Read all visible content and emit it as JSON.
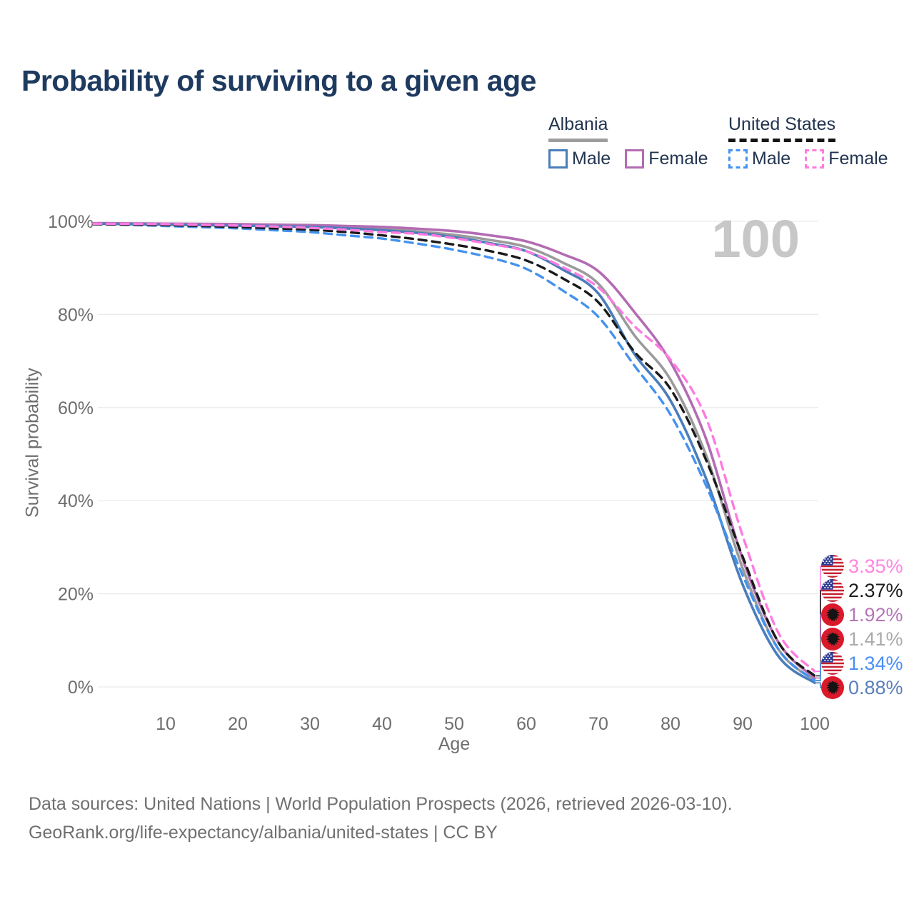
{
  "page": {
    "title": "Probability of surviving to a given age"
  },
  "age_counter": "100",
  "legend": {
    "groups": [
      {
        "country": "Albania",
        "line_style": "solid",
        "underline_color": "#9e9e9e",
        "items": [
          {
            "label": "Male",
            "color": "#4a7dba"
          },
          {
            "label": "Female",
            "color": "#b36cb3"
          }
        ]
      },
      {
        "country": "United States",
        "line_style": "dashed",
        "underline_color": "#141414",
        "items": [
          {
            "label": "Male",
            "color": "#4492ee"
          },
          {
            "label": "Female",
            "color": "#ff7be0"
          }
        ]
      }
    ]
  },
  "chart_data": {
    "type": "line",
    "title": "Probability of surviving to a given age",
    "xlabel": "Age",
    "ylabel": "Survival probability",
    "xlim": [
      0,
      100
    ],
    "ylim": [
      0,
      100
    ],
    "grid": "horizontal",
    "x_ticks": [
      10,
      20,
      30,
      40,
      50,
      60,
      70,
      80,
      90,
      100
    ],
    "y_ticks": [
      0,
      20,
      40,
      60,
      80,
      100
    ],
    "y_tick_suffix": "%",
    "x": [
      0,
      5,
      10,
      15,
      20,
      25,
      30,
      35,
      40,
      45,
      50,
      55,
      60,
      65,
      70,
      75,
      80,
      85,
      90,
      95,
      100
    ],
    "series": [
      {
        "name": "Albania Total",
        "country": "al",
        "color": "#9b9b9b",
        "dash": false,
        "values": [
          99.55,
          99.5,
          99.45,
          99.4,
          99.3,
          99.2,
          99.05,
          98.8,
          98.45,
          97.8,
          97.1,
          96.0,
          94.5,
          91.2,
          86.6,
          75.5,
          66.0,
          49.5,
          25.5,
          8.0,
          1.41
        ]
      },
      {
        "name": "Albania Female",
        "country": "al",
        "color": "#b36cb3",
        "dash": false,
        "values": [
          99.6,
          99.55,
          99.5,
          99.45,
          99.4,
          99.3,
          99.2,
          99.0,
          98.8,
          98.4,
          97.9,
          97.0,
          95.7,
          93.0,
          89.3,
          80.5,
          69.8,
          53.0,
          27.5,
          9.5,
          1.92
        ]
      },
      {
        "name": "Albania Male",
        "country": "al",
        "color": "#4a7dba",
        "dash": false,
        "values": [
          99.5,
          99.4,
          99.3,
          99.2,
          99.1,
          98.95,
          98.8,
          98.5,
          98.1,
          97.5,
          96.6,
          95.3,
          93.6,
          89.7,
          84.5,
          71.5,
          61.5,
          44.5,
          22.0,
          6.5,
          0.88
        ]
      },
      {
        "name": "United States Male",
        "country": "us",
        "color": "#4492ee",
        "dash": true,
        "values": [
          99.4,
          99.25,
          99.0,
          98.75,
          98.5,
          98.1,
          97.7,
          97.0,
          96.3,
          95.2,
          93.9,
          92.2,
          89.8,
          85.2,
          79.5,
          69.0,
          58.5,
          43.0,
          24.0,
          8.0,
          1.34
        ]
      },
      {
        "name": "United States Total",
        "country": "us",
        "color": "#1a1a1a",
        "dash": true,
        "values": [
          99.4,
          99.3,
          99.2,
          99.0,
          98.8,
          98.5,
          98.2,
          97.7,
          97.0,
          96.1,
          95.0,
          93.6,
          91.6,
          87.8,
          82.6,
          72.0,
          64.0,
          48.5,
          28.0,
          9.5,
          2.37
        ]
      },
      {
        "name": "United States Female",
        "country": "us",
        "color": "#ff7be0",
        "dash": true,
        "values": [
          99.5,
          99.45,
          99.4,
          99.25,
          99.1,
          98.9,
          98.6,
          98.2,
          97.7,
          97.3,
          96.4,
          95.1,
          93.6,
          90.2,
          85.8,
          77.5,
          70.3,
          57.5,
          32.5,
          11.5,
          3.35
        ]
      }
    ],
    "end_labels": [
      {
        "text": "3.35%",
        "series": "United States Female",
        "flag": "us",
        "color": "#ff85e1"
      },
      {
        "text": "2.37%",
        "series": "United States Total",
        "flag": "us",
        "color": "#1c1c1c"
      },
      {
        "text": "1.92%",
        "series": "Albania Female",
        "flag": "al",
        "color": "#b577b7"
      },
      {
        "text": "1.41%",
        "series": "Albania Total",
        "flag": "al",
        "color": "#ababab"
      },
      {
        "text": "1.34%",
        "series": "United States Male",
        "flag": "us",
        "color": "#4a8ff2"
      },
      {
        "text": "0.88%",
        "series": "Albania Male",
        "flag": "al",
        "color": "#5b7fbd"
      }
    ]
  },
  "footer": {
    "line1": "Data sources: United Nations | World Population Prospects (2026, retrieved 2026-03-10).",
    "line2": "GeoRank.org/life-expectancy/albania/united-states | CC BY"
  }
}
